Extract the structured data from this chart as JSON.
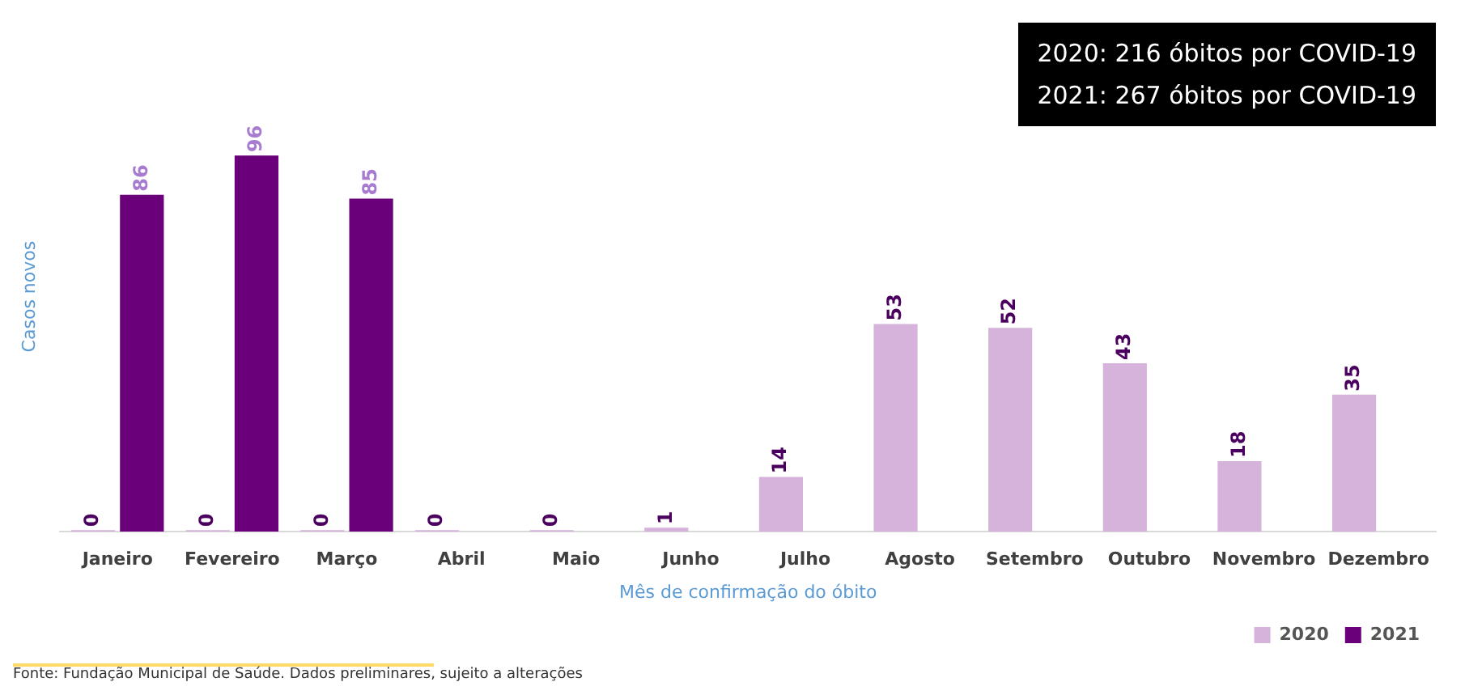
{
  "chart_data": {
    "type": "bar",
    "xlabel": "Mês de confirmação do óbito",
    "ylabel": "Casos novos",
    "categories": [
      "Janeiro",
      "Fevereiro",
      "Março",
      "Abril",
      "Maio",
      "Junho",
      "Julho",
      "Agosto",
      "Setembro",
      "Outubro",
      "Novembro",
      "Dezembro"
    ],
    "series": [
      {
        "name": "2020",
        "color": "#d5b3db",
        "values": [
          0,
          0,
          0,
          0,
          0,
          1,
          14,
          53,
          52,
          43,
          18,
          35
        ]
      },
      {
        "name": "2021",
        "color": "#6a007a",
        "values": [
          86,
          96,
          85,
          null,
          null,
          null,
          null,
          null,
          null,
          null,
          null,
          null
        ]
      }
    ],
    "data_labels": true,
    "grid": false,
    "legend": "bottom right",
    "annotations": [
      "2020: 216 óbitos por COVID-19",
      "2021: 267 óbitos por COVID-19",
      "Fonte: Fundação Municipal de Saúde. Dados preliminares, sujeito a alterações"
    ]
  }
}
